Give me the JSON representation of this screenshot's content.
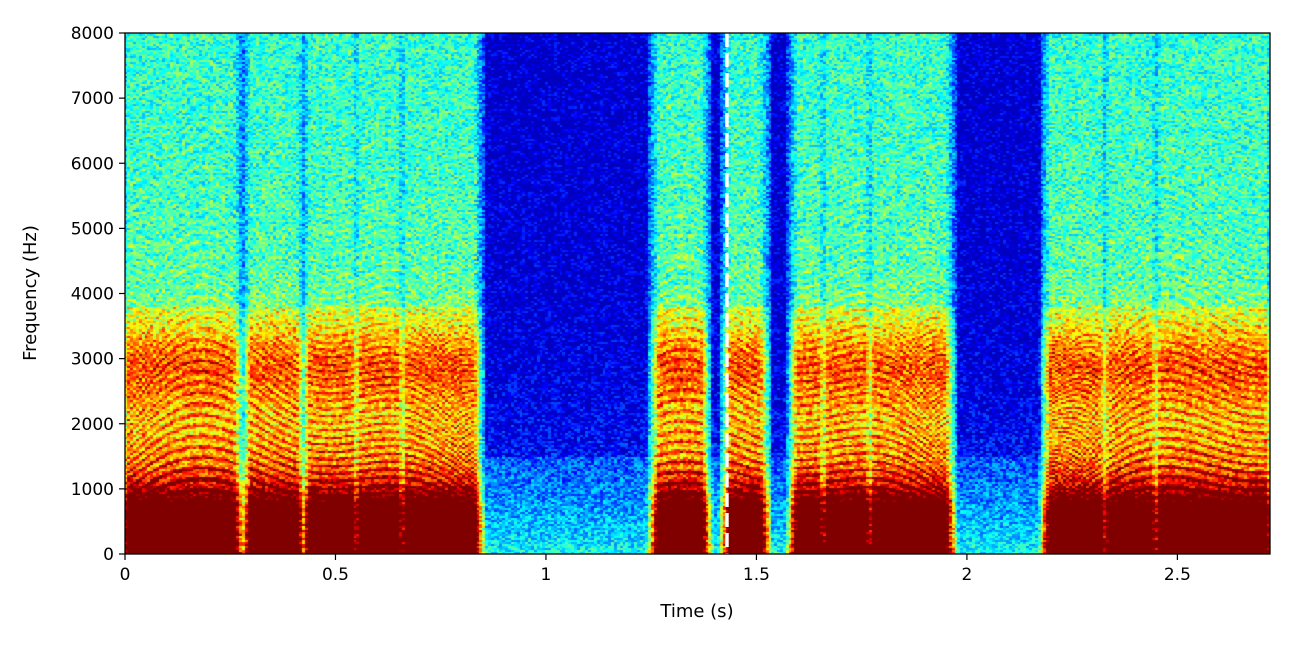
{
  "chart_data": {
    "type": "heatmap",
    "title": "",
    "xlabel": "Time (s)",
    "ylabel": "Frequency (Hz)",
    "xlim": [
      0,
      2.72
    ],
    "ylim": [
      0,
      8000
    ],
    "x_ticks": [
      0,
      0.5,
      1,
      1.5,
      2,
      2.5
    ],
    "x_tick_labels": [
      "0",
      "0.5",
      "1",
      "1.5",
      "2",
      "2.5"
    ],
    "y_ticks": [
      0,
      1000,
      2000,
      3000,
      4000,
      5000,
      6000,
      7000,
      8000
    ],
    "y_tick_labels": [
      "0",
      "1000",
      "2000",
      "3000",
      "4000",
      "5000",
      "6000",
      "7000",
      "8000"
    ],
    "colormap": "jet",
    "grid": false,
    "annotations": [
      {
        "type": "vertical-dashed-line",
        "x": 1.43,
        "color": "#ffffff"
      }
    ],
    "voiced_segments": [
      {
        "start": 0.0,
        "end": 0.2
      },
      {
        "start": 0.18,
        "end": 0.27
      },
      {
        "start": 0.29,
        "end": 0.42
      },
      {
        "start": 0.43,
        "end": 0.55
      },
      {
        "start": 0.55,
        "end": 0.66
      },
      {
        "start": 0.66,
        "end": 0.84
      },
      {
        "start": 1.26,
        "end": 1.38
      },
      {
        "start": 1.43,
        "end": 1.52
      },
      {
        "start": 1.59,
        "end": 1.66
      },
      {
        "start": 1.66,
        "end": 1.77
      },
      {
        "start": 1.77,
        "end": 1.96
      },
      {
        "start": 2.19,
        "end": 2.33
      },
      {
        "start": 2.33,
        "end": 2.45
      },
      {
        "start": 2.45,
        "end": 2.72
      }
    ]
  }
}
